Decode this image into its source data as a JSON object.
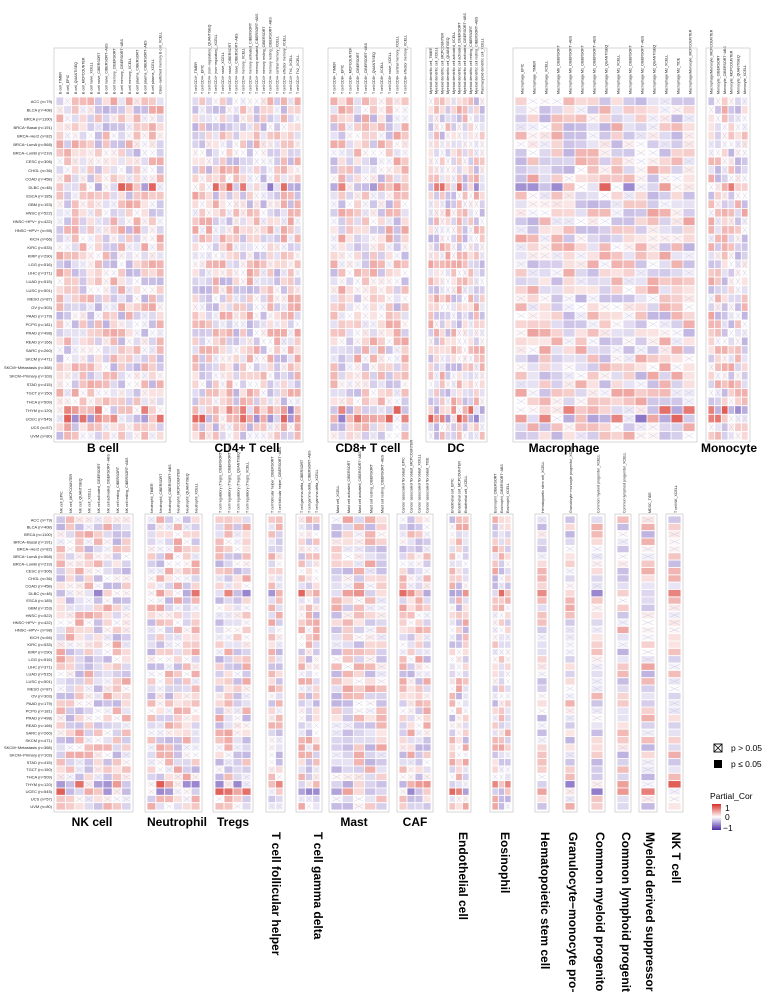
{
  "chart_data": {
    "type": "heatmap",
    "cancer_types": [
      "ACC (n=79)",
      "BLCA (n=408)",
      "BRCA (n=1100)",
      "BRCA−Basal (n=191)",
      "BRCA−Her2 (n=82)",
      "BRCA−LumA (n=568)",
      "BRCA−LumB (n=219)",
      "CESC (n=306)",
      "CHOL (n=36)",
      "COAD (n=458)",
      "DLBC (n=48)",
      "ESCA (n=185)",
      "GBM (n=153)",
      "HNSC (n=522)",
      "HNSC−HPV− (n=422)",
      "HNSC−HPV+ (n=98)",
      "KICH (n=66)",
      "KIRC (n=533)",
      "KIRP (n=290)",
      "LGG (n=516)",
      "LIHC (n=371)",
      "LUAD (n=515)",
      "LUSC (n=501)",
      "MESO (n=87)",
      "OV (n=303)",
      "PAAD (n=179)",
      "PCPG (n=181)",
      "PRAD (n=498)",
      "READ (n=166)",
      "SARC (n=260)",
      "SKCM (n=471)",
      "SKCM−Metastasis (n=368)",
      "SKCM−Primary (n=103)",
      "STAD (n=415)",
      "TGCT (n=150)",
      "THCA (n=509)",
      "THYM (n=120)",
      "UCEC (n=545)",
      "UCS (n=57)",
      "UVM (n=80)"
    ],
    "value_range": [
      -1,
      1
    ],
    "panels": [
      {
        "name": "B cell",
        "columns": [
          "B cell_TIMER",
          "B cell_EPIC",
          "B cell_QUANTISEQ",
          "B cell_MCPCOUNTER",
          "B cell naive_XCELL",
          "B cell naive_CIBERSORT",
          "B cell naive_CIBERSORT−ABS",
          "B cell memory_CIBERSORT",
          "B cell memory_CIBERSORT−ABS",
          "B cell memory_XCELL",
          "B cell plasma_CIBERSORT",
          "B cell plasma_CIBERSORT−ABS",
          "B cell plasma_XCELL",
          "Class−switched memory B cell_XCELL"
        ]
      },
      {
        "name": "CD4+ T cell",
        "columns": [
          "T cell CD4+_TIMER",
          "T cell CD4+_EPIC",
          "T cell CD4+ (non−regulatory)_QUANTISEQ",
          "T cell CD4+ (non−regulatory)_XCELL",
          "T cell CD4+ naive_XCELL",
          "T cell CD4+ naive_CIBERSORT",
          "T cell CD4+ naive_CIBERSORT−ABS",
          "T cell CD4+ memory_XCELL",
          "T cell CD4+ memory activated_CIBERSORT",
          "T cell CD4+ memory activated_CIBERSORT−ABS",
          "T cell CD4+ memory resting_CIBERSORT",
          "T cell CD4+ memory resting_CIBERSORT−ABS",
          "T cell CD4+ central memory_XCELL",
          "T cell CD4+ effector memory_XCELL",
          "T cell CD4+ Th1_XCELL",
          "T cell CD4+ Th2_XCELL"
        ]
      },
      {
        "name": "CD8+ T cell",
        "columns": [
          "T cell CD8+_TIMER",
          "T cell CD8+_EPIC",
          "T cell CD8+_MCPCOUNTER",
          "T cell CD8+_CIBERSORT",
          "T cell CD8+_CIBERSORT−ABS",
          "T cell CD8+_QUANTISEQ",
          "T cell CD8+_XCELL",
          "T cell CD8+ naive_XCELL",
          "T cell CD8+ central memory_XCELL",
          "T cell CD8+ effector memory_XCELL"
        ]
      },
      {
        "name": "DC",
        "columns": [
          "Myeloid dendritic cell_TIMER",
          "Myeloid dendritic cell_XCELL",
          "Myeloid dendritic cell_MCPCOUNTER",
          "Myeloid dendritic cell_QUANTISEQ",
          "Myeloid dendritic cell activated_XCELL",
          "Myeloid dendritic cell activated_CIBERSORT",
          "Myeloid dendritic cell activated_CIBERSORT−ABS",
          "Myeloid dendritic cell resting_CIBERSORT",
          "Myeloid dendritic cell resting_CIBERSORT−ABS",
          "Plasmacytoid dendritic cell_XCELL"
        ]
      },
      {
        "name": "Macrophage",
        "columns": [
          "Macrophage_EPIC",
          "Macrophage_TIMER",
          "Macrophage_XCELL",
          "Macrophage M0_CIBERSORT",
          "Macrophage M0_CIBERSORT−ABS",
          "Macrophage M1_CIBERSORT",
          "Macrophage M1_CIBERSORT−ABS",
          "Macrophage M1_QUANTISEQ",
          "Macrophage M1_XCELL",
          "Macrophage M2_CIBERSORT",
          "Macrophage M2_CIBERSORT−ABS",
          "Macrophage M2_QUANTISEQ",
          "Macrophage M2_XCELL",
          "Macrophage M2_TIDE",
          "Macrophage/Monocyte_MCPCOUNTER"
        ]
      },
      {
        "name": "Monocyte",
        "columns": [
          "Macrophage/Monocyte_MCPCOUNTER",
          "Monocyte_CIBERSORT",
          "Monocyte_CIBERSORT−ABS",
          "Monocyte_MCPCOUNTER",
          "Monocyte_QUANTISEQ",
          "Monocyte_XCELL"
        ]
      },
      {
        "name": "NK cell",
        "columns": [
          "NK cell_EPIC",
          "NK cell_MCPCOUNTER",
          "NK cell_QUANTISEQ",
          "NK cell_XCELL",
          "NK cell activated_CIBERSORT",
          "NK cell activated_CIBERSORT−ABS",
          "NK cell resting_CIBERSORT",
          "NK cell resting_CIBERSORT−ABS"
        ]
      },
      {
        "name": "Neutrophil",
        "columns": [
          "Neutrophil_TIMER",
          "Neutrophil_CIBERSORT",
          "Neutrophil_CIBERSORT−ABS",
          "Neutrophil_MCPCOUNTER",
          "Neutrophil_QUANTISEQ",
          "Neutrophil_XCELL"
        ]
      },
      {
        "name": "Tregs",
        "columns": [
          "T cell regulatory (Tregs)_CIBERSORT",
          "T cell regulatory (Tregs)_CIBERSORT−ABS",
          "T cell regulatory (Tregs)_QUANTISEQ",
          "T cell regulatory (Tregs)_XCELL"
        ]
      },
      {
        "name": "T cell follicular helper",
        "columns": [
          "T cell follicular helper_CIBERSORT",
          "T cell follicular helper_CIBERSORT−ABS"
        ]
      },
      {
        "name": "T cell gamma delta",
        "columns": [
          "T cell gamma delta_CIBERSORT",
          "T cell gamma delta_CIBERSORT−ABS",
          "T cell gamma delta_XCELL"
        ]
      },
      {
        "name": "Mast",
        "columns": [
          "Mast cell_XCELL",
          "Mast cell activated_CIBERSORT",
          "Mast cell activated_CIBERSORT−ABS",
          "Mast cell resting_CIBERSORT",
          "Mast cell resting_CIBERSORT−ABS"
        ]
      },
      {
        "name": "CAF",
        "columns": [
          "Cancer associated fibroblast_EPIC",
          "Cancer associated fibroblast_MCPCOUNTER",
          "Cancer associated fibroblast_XCELL",
          "Cancer associated fibroblast_TIDE"
        ]
      },
      {
        "name": "Endothelial cell",
        "columns": [
          "Endothelial cell_EPIC",
          "Endothelial cell_MCPCOUNTER",
          "Endothelial cell_XCELL"
        ]
      },
      {
        "name": "Eosinophil",
        "columns": [
          "Eosinophil_CIBERSORT",
          "Eosinophil_CIBERSORT−ABS",
          "Eosinophil_XCELL"
        ]
      },
      {
        "name": "Hematopoietic stem cell",
        "columns": [
          "Hematopoietic stem cell_XCELL"
        ]
      },
      {
        "name": "Granulocyte−monocyte pro−",
        "columns": [
          "Granulocyte−monocyte progenitor_XCELL"
        ]
      },
      {
        "name": "Common myeloid progenitor",
        "columns": [
          "Common myeloid progenitor_XCELL"
        ]
      },
      {
        "name": "Common lymphoid progenitor",
        "columns": [
          "Common lymphoid progenitor_XCELL"
        ]
      },
      {
        "name": "Myeloid derived suppressor",
        "columns": [
          "MDSC_TIDE"
        ]
      },
      {
        "name": "NK T cell",
        "columns": [
          "T cell NK_XCELL"
        ]
      }
    ],
    "legend": {
      "significance": [
        {
          "symbol": "crossed-box-icon",
          "label": "p > 0.05"
        },
        {
          "symbol": "filled-box-icon",
          "label": "p ≤ 0.05"
        }
      ],
      "colorbar_title": "Partial_Cor",
      "colorbar_ticks": [
        "1",
        "0",
        "−1"
      ],
      "colors": {
        "high": "#d73027",
        "mid": "#ffffff",
        "low": "#4b2aa8"
      }
    }
  }
}
